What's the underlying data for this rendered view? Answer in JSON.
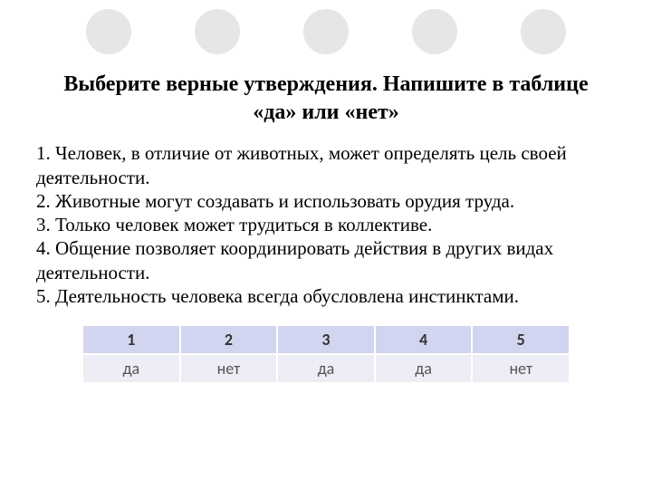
{
  "decor": {
    "circle_color": "#e7e5e5",
    "circle_count": 5
  },
  "title": "Выберите верные утверждения. Напишите в таблице «да» или «нет»",
  "statements": [
    "1. Человек, в отличие от животных, может определять цель своей деятельности.",
    "2. Животные могут создавать и использовать орудия труда.",
    "3. Только человек может трудиться в коллективе.",
    "4. Общение позволяет координировать действия в других видах деятельности.",
    "5. Деятельность человека всегда обусловлена инстинктами."
  ],
  "table": {
    "type": "table",
    "columns": [
      "1",
      "2",
      "3",
      "4",
      "5"
    ],
    "rows": [
      [
        "да",
        "нет",
        "да",
        "да",
        "нет"
      ]
    ],
    "header_bg": "#d2d5ef",
    "row_bg": "#ededf6",
    "border_color": "#ffffff",
    "font_family": "Calibri",
    "header_fontsize": 18,
    "cell_fontsize": 18
  },
  "styling": {
    "background_color": "#ffffff",
    "text_color": "#000000",
    "title_fontsize": 24,
    "body_fontsize": 21,
    "font_family": "Times New Roman"
  }
}
